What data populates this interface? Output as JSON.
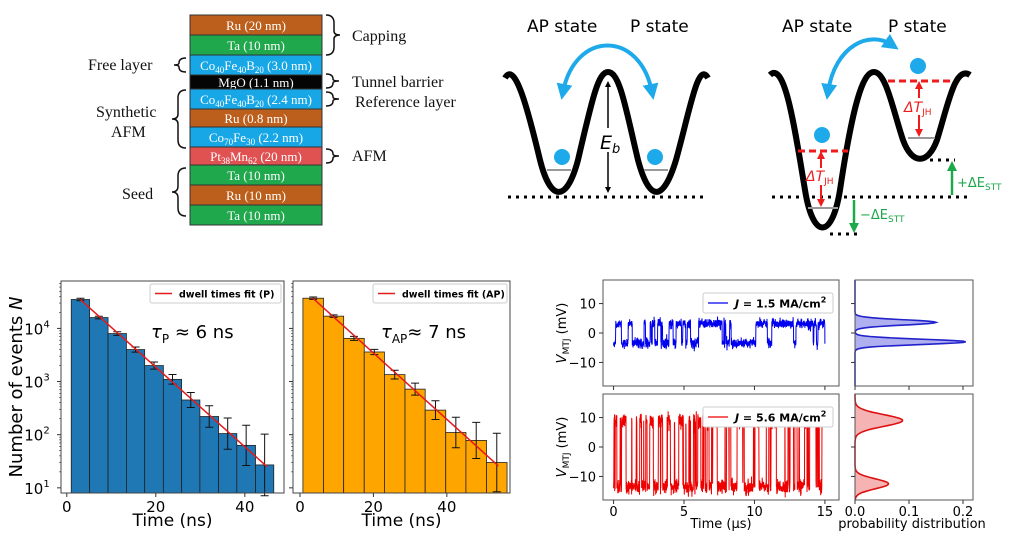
{
  "layer_stack": {
    "layers": [
      {
        "parts": [
          [
            "Ru (20 nm)",
            0
          ]
        ],
        "color": "#bd5f1c"
      },
      {
        "parts": [
          [
            "Ta (10 nm)",
            0
          ]
        ],
        "color": "#1fa84c"
      },
      {
        "parts": [
          [
            "Co",
            0
          ],
          [
            "40",
            1
          ],
          [
            "Fe",
            0
          ],
          [
            "40",
            1
          ],
          [
            "B",
            0
          ],
          [
            "20",
            1
          ],
          [
            " (3.0 nm)",
            0
          ]
        ],
        "color": "#17a7e6"
      },
      {
        "parts": [
          [
            "MgO (1.1 nm)",
            0
          ]
        ],
        "color": "#050505"
      },
      {
        "parts": [
          [
            "Co",
            0
          ],
          [
            "40",
            1
          ],
          [
            "Fe",
            0
          ],
          [
            "40",
            1
          ],
          [
            "B",
            0
          ],
          [
            "20",
            1
          ],
          [
            " (2.4 nm)",
            0
          ]
        ],
        "color": "#17a7e6"
      },
      {
        "parts": [
          [
            "Ru (0.8 nm)",
            0
          ]
        ],
        "color": "#bd5f1c"
      },
      {
        "parts": [
          [
            "Co",
            0
          ],
          [
            "70",
            1
          ],
          [
            "Fe",
            0
          ],
          [
            "30",
            1
          ],
          [
            " (2.2 nm)",
            0
          ]
        ],
        "color": "#17a7e6"
      },
      {
        "parts": [
          [
            "Pt",
            0
          ],
          [
            "38",
            1
          ],
          [
            "Mn",
            0
          ],
          [
            "62",
            1
          ],
          [
            " (20 nm)",
            0
          ]
        ],
        "color": "#e05252"
      },
      {
        "parts": [
          [
            "Ta (10 nm)",
            0
          ]
        ],
        "color": "#1fa84c"
      },
      {
        "parts": [
          [
            "Ru (10 nm)",
            0
          ]
        ],
        "color": "#bd5f1c"
      },
      {
        "parts": [
          [
            "Ta (10 nm)",
            0
          ]
        ],
        "color": "#1fa84c"
      }
    ],
    "labels": {
      "capping": "Capping",
      "free_layer": "Free layer",
      "tunnel_barrier": "Tunnel barrier",
      "reference_layer": "Reference layer",
      "synthetic_afm_1": "Synthetic",
      "synthetic_afm_2": "AFM",
      "afm": "AFM",
      "seed": "Seed"
    }
  },
  "energy_diagrams": {
    "left": {
      "ap_label": "AP state",
      "p_label": "P state",
      "barrier_label": "E",
      "barrier_sub": "b"
    },
    "right": {
      "ap_label": "AP state",
      "p_label": "P state",
      "djh": "ΔT",
      "djh_sub": "JH",
      "plus_estt": "+ΔE",
      "minus_estt": "−ΔE",
      "estt_sub": "STT"
    },
    "colors": {
      "arrow": "#1eaaea",
      "ball": "#1eaaea",
      "joule": "#ee1c1c",
      "stt": "#1ea84c"
    }
  },
  "chart_data": [
    {
      "type": "bar",
      "panel": "dwell-P",
      "scale_y": "log",
      "bin_edges": [
        1.0,
        5.13,
        9.27,
        13.4,
        17.5,
        21.7,
        25.8,
        29.9,
        34.1,
        38.2,
        42.4,
        46.5
      ],
      "values": [
        35000,
        16000,
        8000,
        4000,
        2000,
        1100,
        450,
        220,
        105,
        63,
        27
      ],
      "color": "#1f77b4",
      "fit": {
        "name": "dwell times fit (P)",
        "x": [
          3,
          45
        ],
        "y": [
          35000,
          25
        ],
        "color": "#e41a1c"
      },
      "annotation": {
        "tau": "τ",
        "sub": "P",
        "text": " ≈ 6 ns"
      },
      "xlabel": "Time (ns)",
      "ylabel_main": "Number of events ",
      "ylabel_ital": "N",
      "xlim": [
        -1.3,
        48.8
      ],
      "ylim": [
        8,
        78000
      ],
      "xticks": [
        "0",
        "20",
        "40"
      ],
      "yticks": [
        {
          "base": "10",
          "exp": "1"
        },
        {
          "base": "10",
          "exp": "2"
        },
        {
          "base": "10",
          "exp": "3"
        },
        {
          "base": "10",
          "exp": "4"
        }
      ],
      "legend_position": "top-right"
    },
    {
      "type": "bar",
      "panel": "dwell-AP",
      "scale_y": "log",
      "bin_edges": [
        0.8,
        6.4,
        11.9,
        17.5,
        23.0,
        28.6,
        34.1,
        39.7,
        45.2,
        50.8,
        56.4
      ],
      "values": [
        37000,
        17000,
        6500,
        3600,
        1350,
        720,
        290,
        110,
        78,
        30
      ],
      "color": "#ffa500",
      "fit": {
        "name": "dwell times fit (AP)",
        "x": [
          3.5,
          54
        ],
        "y": [
          37000,
          26
        ],
        "color": "#e41a1c"
      },
      "annotation": {
        "tau": "τ",
        "sub": "AP",
        "text": "≈ 7 ns"
      },
      "xlabel": "Time (ns)",
      "xlim": [
        -1.9,
        57.2
      ],
      "ylim": [
        8,
        78000
      ],
      "xticks": [
        "0",
        "20",
        "40"
      ],
      "legend_position": "top-right"
    },
    {
      "type": "line",
      "panel": "trace-low",
      "legend": {
        "j": "J",
        "text": " = 1.5 MA/cm",
        "sup": "2"
      },
      "levels_mV": [
        -3.5,
        3.2
      ],
      "color": "#0000ee",
      "ylabel": "V",
      "ylabel_sub": "MTJ",
      "ylabel_unit": " (mV)",
      "xlim": [
        -0.75,
        16.0
      ],
      "ylim": [
        -18,
        18
      ],
      "yticks": [
        "10",
        "0",
        "−10"
      ],
      "xticks": [
        "0",
        "5",
        "10",
        "15"
      ],
      "legend_position": "top-right"
    },
    {
      "type": "line",
      "panel": "trace-high",
      "legend": {
        "j": "J",
        "text": " = 5.6 MA/cm",
        "sup": "2"
      },
      "levels_mV": [
        -13.5,
        9.0
      ],
      "color": "#ee0000",
      "ylabel": "V",
      "ylabel_sub": "MTJ",
      "ylabel_unit": " (mV)",
      "xlabel": "Time (µs)",
      "xlim": [
        -0.75,
        16.0
      ],
      "ylim": [
        -18,
        18
      ],
      "yticks": [
        "10",
        "0",
        "−10"
      ],
      "xticks": [
        "0",
        "5",
        "10",
        "15"
      ],
      "legend_position": "top-right"
    },
    {
      "type": "area",
      "panel": "dist-low",
      "peaks": [
        {
          "v_mV": 3.6,
          "density": 0.15,
          "width": 0.9
        },
        {
          "v_mV": -3.0,
          "density": 0.205,
          "width": 0.9
        }
      ],
      "color": "#2222cc",
      "fill": "#b0b0f0",
      "xlim": [
        0,
        0.22
      ],
      "ylim": [
        -18,
        18
      ]
    },
    {
      "type": "area",
      "panel": "dist-high",
      "peaks": [
        {
          "v_mV": 9.0,
          "density": 0.088,
          "width": 2.0
        },
        {
          "v_mV": -12.5,
          "density": 0.062,
          "width": 1.7
        }
      ],
      "color": "#dd1111",
      "fill": "#f6b3b3",
      "xlabel": "probability distribution",
      "xlim": [
        0,
        0.22
      ],
      "ylim": [
        -18,
        18
      ],
      "xticks": [
        "0.0",
        "0.1",
        "0.2"
      ]
    }
  ]
}
